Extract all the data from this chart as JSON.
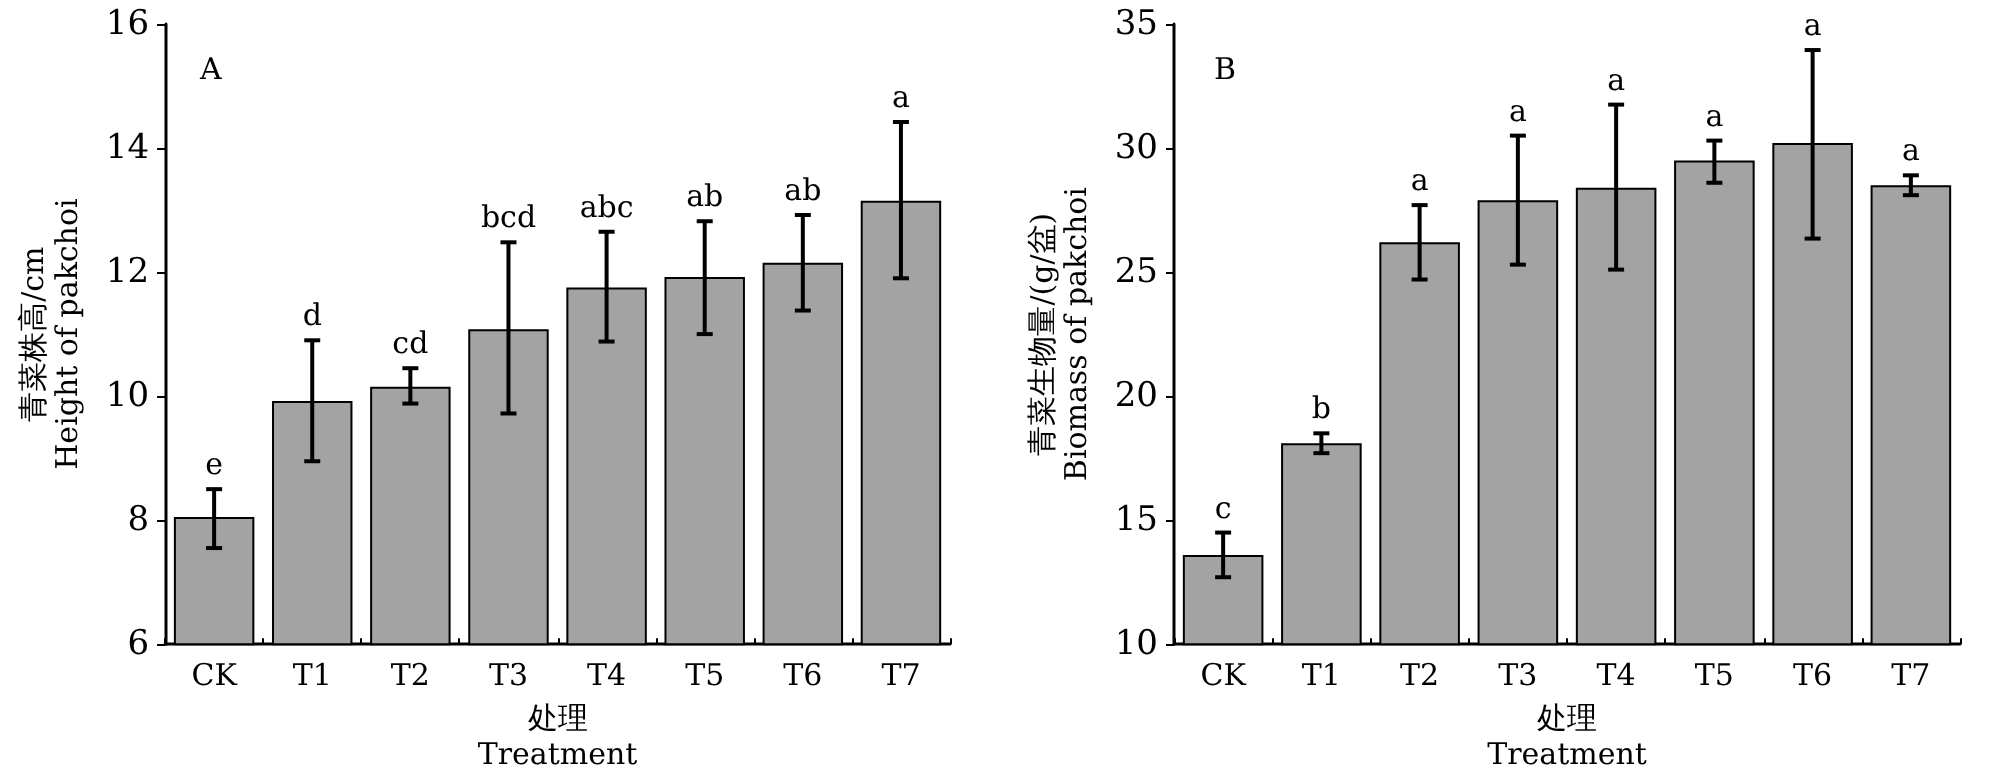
{
  "chart_data": [
    {
      "type": "bar",
      "title": "A",
      "xlabel": "处理\nTreatment",
      "ylabel": "青菜株高/cm\nHeight of pakchoi",
      "categories": [
        "CK",
        "T1",
        "T2",
        "T3",
        "T4",
        "T5",
        "T6",
        "T7"
      ],
      "values": [
        8.05,
        9.92,
        10.15,
        11.08,
        11.75,
        11.92,
        12.15,
        13.15
      ],
      "errors": [
        [
          7.55,
          8.5
        ],
        [
          8.95,
          10.9
        ],
        [
          9.88,
          10.45
        ],
        [
          9.72,
          12.48
        ],
        [
          10.88,
          12.65
        ],
        [
          11.0,
          12.82
        ],
        [
          11.38,
          12.92
        ],
        [
          11.9,
          14.42
        ]
      ],
      "color": "#a3a3a3",
      "ylim": [
        6,
        16
      ],
      "yticks": [
        6,
        8,
        10,
        12,
        14,
        16
      ],
      "grid": false,
      "annotations": [
        {
          "text": "e",
          "x": "CK",
          "y": 8.5
        },
        {
          "text": "d",
          "x": "T1",
          "y": 10.9
        },
        {
          "text": "cd",
          "x": "T2",
          "y": 10.45
        },
        {
          "text": "bcd",
          "x": "T3",
          "y": 12.48
        },
        {
          "text": "abc",
          "x": "T4",
          "y": 12.65
        },
        {
          "text": "ab",
          "x": "T5",
          "y": 12.82
        },
        {
          "text": "ab",
          "x": "T6",
          "y": 12.92
        },
        {
          "text": "a",
          "x": "T7",
          "y": 14.42
        }
      ]
    },
    {
      "type": "bar",
      "title": "B",
      "xlabel": "处理\nTreatment",
      "ylabel": "青菜生物量/(g/盆)\nBiomass of pakchoi",
      "categories": [
        "CK",
        "T1",
        "T2",
        "T3",
        "T4",
        "T5",
        "T6",
        "T7"
      ],
      "values": [
        13.6,
        18.1,
        26.2,
        27.9,
        28.4,
        29.5,
        30.2,
        28.5
      ],
      "errors": [
        [
          12.7,
          14.5
        ],
        [
          17.7,
          18.5
        ],
        [
          24.7,
          27.7
        ],
        [
          25.3,
          30.5
        ],
        [
          25.1,
          31.75
        ],
        [
          28.6,
          30.3
        ],
        [
          26.35,
          33.95
        ],
        [
          28.1,
          28.9
        ]
      ],
      "color": "#a3a3a3",
      "ylim": [
        10,
        35
      ],
      "yticks": [
        10,
        15,
        20,
        25,
        30,
        35
      ],
      "grid": false,
      "annotations": [
        {
          "text": "c",
          "x": "CK",
          "y": 14.5
        },
        {
          "text": "b",
          "x": "T1",
          "y": 18.5
        },
        {
          "text": "a",
          "x": "T2",
          "y": 27.7
        },
        {
          "text": "a",
          "x": "T3",
          "y": 30.5
        },
        {
          "text": "a",
          "x": "T4",
          "y": 31.75
        },
        {
          "text": "a",
          "x": "T5",
          "y": 30.3
        },
        {
          "text": "a",
          "x": "T6",
          "y": 33.95
        },
        {
          "text": "a",
          "x": "T7",
          "y": 28.9
        }
      ]
    }
  ]
}
